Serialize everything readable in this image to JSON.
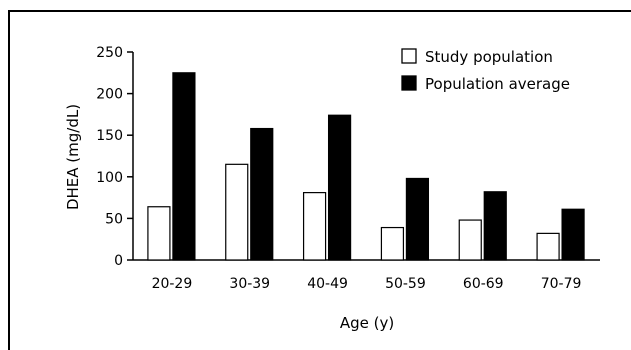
{
  "chart_data": {
    "type": "bar",
    "xlabel": "Age (y)",
    "ylabel": "DHEA (mg/dL)",
    "ylim": [
      0,
      250
    ],
    "yticks": [
      0,
      50,
      100,
      150,
      200,
      250
    ],
    "categories": [
      "20-29",
      "30-39",
      "40-49",
      "50-59",
      "60-69",
      "70-79"
    ],
    "series": [
      {
        "name": "Study population",
        "values": [
          64,
          115,
          81,
          39,
          48,
          32
        ],
        "color": "#ffffff"
      },
      {
        "name": "Population average",
        "values": [
          225,
          158,
          174,
          98,
          82,
          61
        ],
        "color": "#000000"
      }
    ],
    "legend": "top-right",
    "grid": false
  }
}
